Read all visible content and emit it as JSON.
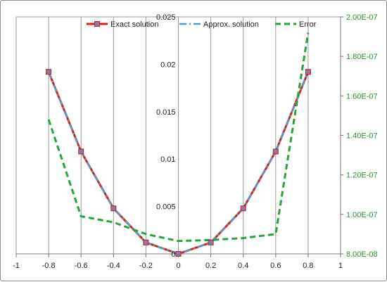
{
  "chart_data": {
    "type": "line",
    "x_axis": {
      "range": [
        -1,
        1
      ],
      "tick_labels": [
        "-1",
        "-0.8",
        "-0.6",
        "-0.4",
        "-0.2",
        "0",
        "0.2",
        "0.4",
        "0.6",
        "0.8",
        "1"
      ]
    },
    "y_axis_left": {
      "range": [
        0,
        0.025
      ],
      "tick_labels": [
        "0",
        "0.005",
        "0.01",
        "0.015",
        "0.02",
        "0.025"
      ]
    },
    "y_axis_right": {
      "range": [
        8e-08,
        2e-07
      ],
      "tick_labels": [
        "8.00E-08",
        "1.00E-07",
        "1.20E-07",
        "1.40E-07",
        "1.60E-07",
        "1.80E-07",
        "2.00E-07"
      ]
    },
    "grid": "vertical",
    "legend_position": "top",
    "series": [
      {
        "name": "Exact solution",
        "axis": "left",
        "color": "#d9201f",
        "marker": "square",
        "x": [
          -0.8,
          -0.6,
          -0.4,
          -0.2,
          0,
          0.2,
          0.4,
          0.6,
          0.8
        ],
        "y": [
          0.0192,
          0.0108,
          0.0048,
          0.0012,
          0.0,
          0.0012,
          0.0048,
          0.0108,
          0.0192
        ]
      },
      {
        "name": "Approx. solution",
        "axis": "left",
        "color": "#4f9fc6",
        "dash": "dash-dot",
        "x": [
          -0.8,
          -0.6,
          -0.4,
          -0.2,
          0,
          0.2,
          0.4,
          0.6,
          0.8
        ],
        "y": [
          0.0192,
          0.0108,
          0.0048,
          0.0012,
          0.0,
          0.0012,
          0.0048,
          0.0108,
          0.0192
        ]
      },
      {
        "name": "Error",
        "axis": "right",
        "color": "#22a53a",
        "dash": "dashed",
        "x": [
          -0.8,
          -0.6,
          -0.4,
          -0.2,
          0,
          0.2,
          0.4,
          0.6,
          0.8
        ],
        "y": [
          1.48e-07,
          9.9e-08,
          9.6e-08,
          9e-08,
          8.65e-08,
          8.7e-08,
          8.8e-08,
          9e-08,
          1.92e-07
        ]
      }
    ]
  }
}
